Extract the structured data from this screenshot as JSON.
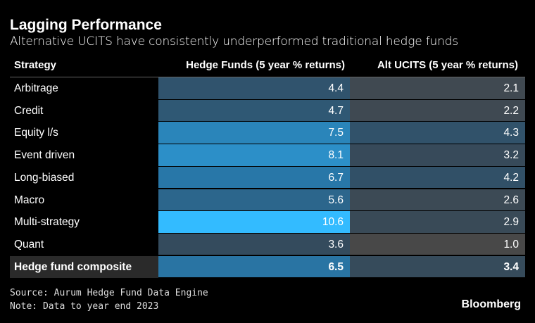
{
  "header": {
    "title": "Lagging Performance",
    "subtitle": "Alternative UCITS have consistently underperformed traditional hedge funds"
  },
  "table": {
    "columns": [
      "Strategy",
      "Hedge Funds (5 year % returns)",
      "Alt UCITS (5 year % returns)"
    ],
    "rows": [
      [
        "Arbitrage",
        "4.4",
        "2.1"
      ],
      [
        "Credit",
        "4.7",
        "2.2"
      ],
      [
        "Equity l/s",
        "7.5",
        "4.3"
      ],
      [
        "Event driven",
        "8.1",
        "3.2"
      ],
      [
        "Long-biased",
        "6.7",
        "4.2"
      ],
      [
        "Macro",
        "5.6",
        "2.6"
      ],
      [
        "Multi-strategy",
        "10.6",
        "2.9"
      ],
      [
        "Quant",
        "3.6",
        "1.0"
      ],
      [
        "Hedge fund composite",
        "6.5",
        "3.4"
      ]
    ]
  },
  "footer": {
    "source": "Source: Aurum Hedge Fund Data Engine",
    "note": "Note: Data to year end 2023",
    "brand": "Bloomberg"
  }
}
